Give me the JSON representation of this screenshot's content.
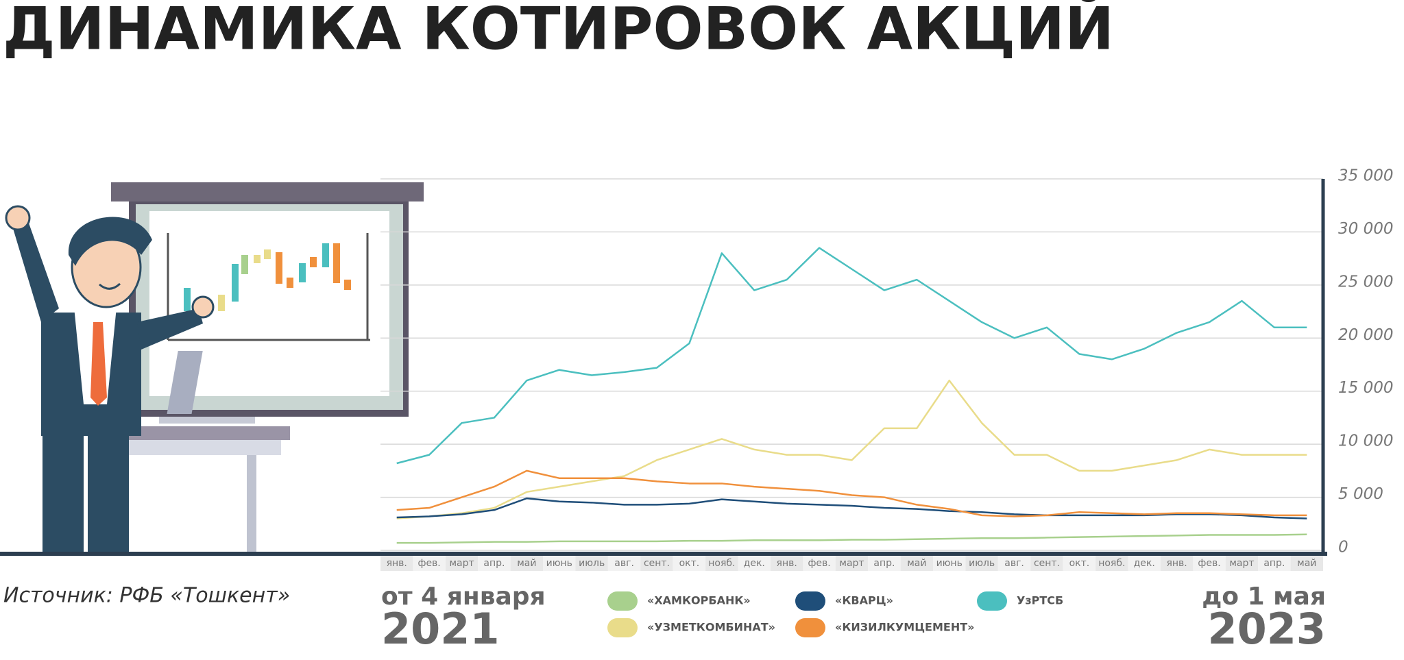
{
  "chart_data": {
    "type": "line",
    "title": "ДИНАМИКА КОТИРОВОК АКЦИЙ",
    "source": "Источник: РФБ «Тошкент»",
    "period_start": {
      "label": "от 4 января",
      "year": "2021"
    },
    "period_end": {
      "label": "до 1 мая",
      "year": "2023"
    },
    "categories": [
      "янв.",
      "фев.",
      "март",
      "апр.",
      "май",
      "июнь",
      "июль",
      "авг.",
      "сент.",
      "окт.",
      "нояб.",
      "дек.",
      "янв.",
      "фев.",
      "март",
      "апр.",
      "май",
      "июнь",
      "июль",
      "авг.",
      "сент.",
      "окт.",
      "нояб.",
      "дек.",
      "янв.",
      "фев.",
      "март",
      "апр.",
      "май"
    ],
    "series": [
      {
        "name": "«ХАМКОРБАНК»",
        "color": "#a8d08d",
        "values": [
          700,
          700,
          750,
          800,
          800,
          850,
          850,
          850,
          850,
          900,
          900,
          950,
          950,
          950,
          1000,
          1000,
          1050,
          1100,
          1150,
          1150,
          1200,
          1250,
          1300,
          1350,
          1400,
          1450,
          1450,
          1450,
          1500
        ]
      },
      {
        "name": "«УЗМЕТКОМБИНАТ»",
        "color": "#e9dc8a",
        "values": [
          3000,
          3200,
          3500,
          4000,
          5500,
          6000,
          6500,
          7000,
          8500,
          9500,
          10500,
          9500,
          9000,
          9000,
          8500,
          11500,
          11500,
          16000,
          12000,
          9000,
          9000,
          7500,
          7500,
          8000,
          8500,
          9500,
          9000,
          9000,
          9000
        ]
      },
      {
        "name": "«КВАРЦ»",
        "color": "#1f4e79",
        "values": [
          3100,
          3200,
          3400,
          3800,
          4900,
          4600,
          4500,
          4300,
          4300,
          4400,
          4800,
          4600,
          4400,
          4300,
          4200,
          4000,
          3900,
          3700,
          3600,
          3400,
          3300,
          3300,
          3300,
          3300,
          3400,
          3400,
          3300,
          3100,
          3000
        ]
      },
      {
        "name": "«КИЗИЛКУМЦЕМЕНТ»",
        "color": "#f0903c",
        "values": [
          3800,
          4000,
          5000,
          6000,
          7500,
          6800,
          6800,
          6800,
          6500,
          6300,
          6300,
          6000,
          5800,
          5600,
          5200,
          5000,
          4300,
          3900,
          3300,
          3200,
          3300,
          3600,
          3500,
          3400,
          3500,
          3500,
          3400,
          3300,
          3300
        ]
      },
      {
        "name": "УзРТСБ",
        "color": "#4bbfbf",
        "values": [
          8200,
          9000,
          12000,
          12500,
          16000,
          17000,
          16500,
          16800,
          17200,
          19500,
          28000,
          24500,
          25500,
          28500,
          26500,
          24500,
          25500,
          23500,
          21500,
          20000,
          21000,
          18500,
          18000,
          19000,
          20500,
          21500,
          23500,
          21000,
          21000
        ]
      }
    ],
    "ylim": [
      0,
      35000
    ],
    "yticks": [
      0,
      {
        "value": 5000,
        "label": "5 000"
      },
      {
        "value": 10000,
        "label": "10 000"
      },
      {
        "value": 15000,
        "label": "15 000"
      },
      {
        "value": 20000,
        "label": "20 000"
      },
      {
        "value": 25000,
        "label": "25 000"
      },
      {
        "value": 30000,
        "label": "30 000"
      },
      {
        "value": 35000,
        "label": "35 000"
      }
    ],
    "grid": true
  }
}
